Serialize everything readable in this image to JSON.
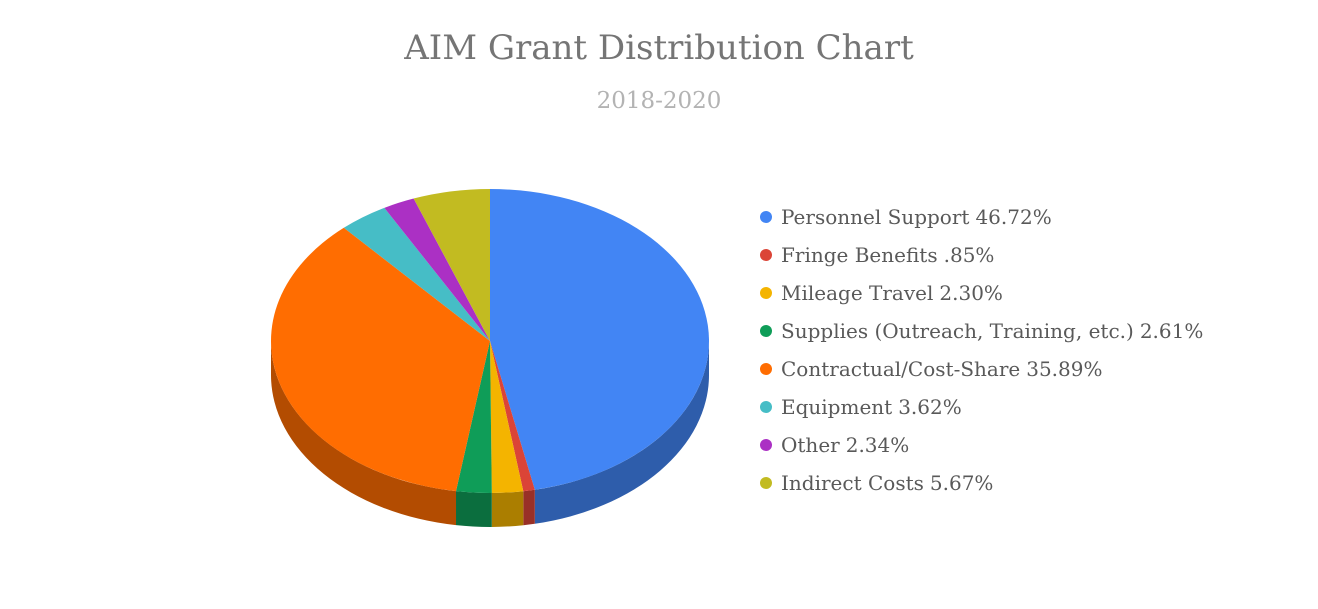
{
  "chart_data": {
    "type": "pie",
    "title": "AIM Grant Distribution Chart",
    "subtitle": "2018-2020",
    "legend_position": "right",
    "three_d": true,
    "slices": [
      {
        "label": "Personnel Support",
        "value_label": "46.72%",
        "value": 46.72,
        "color": "#4285f4"
      },
      {
        "label": "Fringe Benefits",
        "value_label": ".85%",
        "value": 0.85,
        "color": "#db4437"
      },
      {
        "label": "Mileage Travel",
        "value_label": "2.30%",
        "value": 2.3,
        "color": "#f4b400"
      },
      {
        "label": "Supplies (Outreach, Training, etc.)",
        "value_label": "2.61%",
        "value": 2.61,
        "color": "#0f9d58"
      },
      {
        "label": "Contractual/Cost-Share",
        "value_label": "35.89%",
        "value": 35.89,
        "color": "#ff6d01"
      },
      {
        "label": "Equipment",
        "value_label": "3.62%",
        "value": 3.62,
        "color": "#46bdc6"
      },
      {
        "label": "Other",
        "value_label": "2.34%",
        "value": 2.34,
        "color": "#ab30c4"
      },
      {
        "label": "Indirect Costs",
        "value_label": "5.67%",
        "value": 5.67,
        "color": "#c2bb21"
      }
    ]
  }
}
